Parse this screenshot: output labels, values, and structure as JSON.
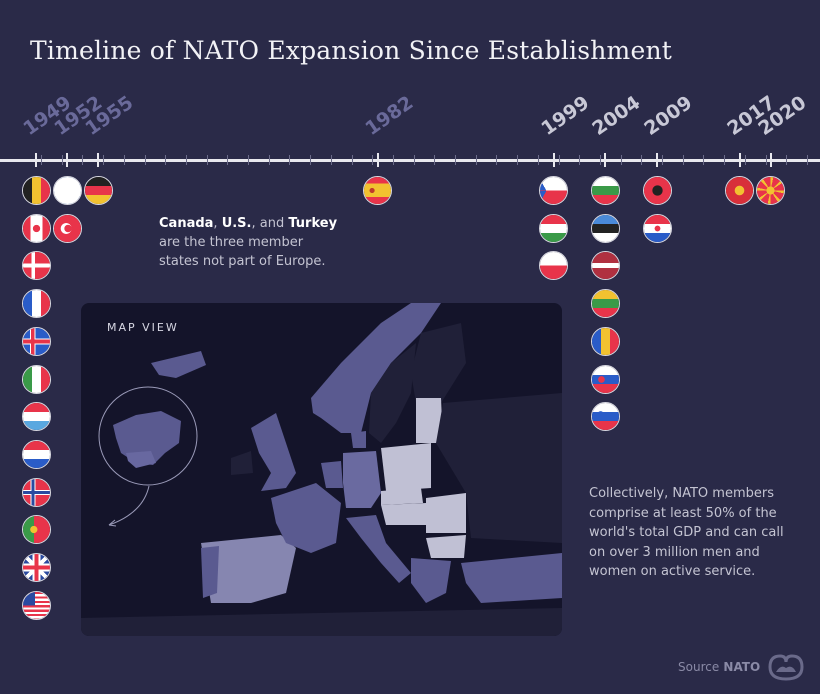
{
  "title": "Timeline of NATO Expansion Since Establishment",
  "timeline": [
    {
      "year": "1949",
      "faded": true,
      "countries": [
        "Belgium",
        "Canada",
        "Denmark",
        "France",
        "Iceland",
        "Italy",
        "Luxembourg",
        "Netherlands",
        "Norway",
        "Portugal",
        "United Kingdom",
        "United States"
      ]
    },
    {
      "year": "1952",
      "faded": true,
      "countries": [
        "Greece",
        "Turkey"
      ]
    },
    {
      "year": "1955",
      "faded": true,
      "countries": [
        "Germany"
      ]
    },
    {
      "year": "1982",
      "faded": true,
      "countries": [
        "Spain"
      ]
    },
    {
      "year": "1999",
      "faded": false,
      "countries": [
        "Czech Republic",
        "Hungary",
        "Poland"
      ]
    },
    {
      "year": "2004",
      "faded": false,
      "countries": [
        "Bulgaria",
        "Estonia",
        "Latvia",
        "Lithuania",
        "Romania",
        "Slovakia",
        "Slovenia"
      ]
    },
    {
      "year": "2009",
      "faded": false,
      "countries": [
        "Albania",
        "Croatia"
      ]
    },
    {
      "year": "2017",
      "faded": false,
      "countries": [
        "Montenegro"
      ]
    },
    {
      "year": "2020",
      "faded": false,
      "countries": [
        "North Macedonia"
      ]
    }
  ],
  "note1": {
    "c1": "Canada",
    "sep1": ", ",
    "c2": "U.S.",
    "sep2": ", and ",
    "c3": "Turkey",
    "rest": "are the three member states not part of Europe."
  },
  "map": {
    "label": "MAP VIEW"
  },
  "note2": "Collectively, NATO members comprise at least 50% of the world's total GDP and can call on over 3 million men and women on active service.",
  "source": {
    "label": "Source",
    "value": "NATO"
  },
  "colors": {
    "background": "#2a2a48",
    "map_bg": "#14142a",
    "original": "#5a5a90",
    "mid": "#8686b0",
    "recent": "#c0c0d4"
  }
}
